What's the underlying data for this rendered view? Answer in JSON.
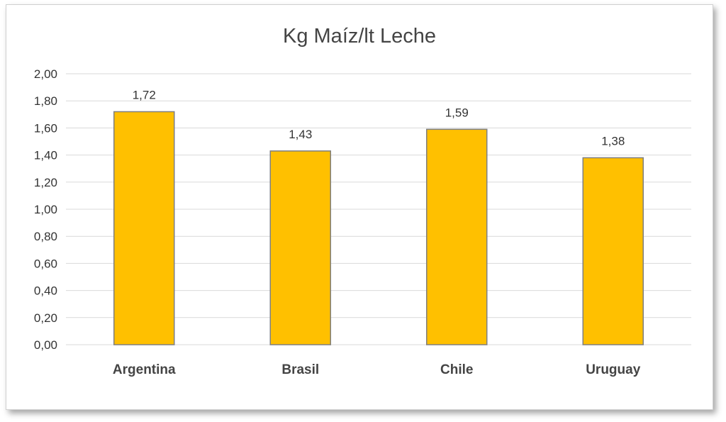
{
  "chart_data": {
    "type": "bar",
    "title": "Kg Maíz/lt Leche",
    "categories": [
      "Argentina",
      "Brasil",
      "Chile",
      "Uruguay"
    ],
    "values": [
      1.72,
      1.43,
      1.59,
      1.38
    ],
    "data_labels": [
      "1,72",
      "1,43",
      "1,59",
      "1,38"
    ],
    "ylim": [
      0,
      2.0
    ],
    "y_ticks": [
      {
        "value": 0.0,
        "label": "0,00"
      },
      {
        "value": 0.2,
        "label": "0,20"
      },
      {
        "value": 0.4,
        "label": "0,40"
      },
      {
        "value": 0.6,
        "label": "0,60"
      },
      {
        "value": 0.8,
        "label": "0,80"
      },
      {
        "value": 1.0,
        "label": "1,00"
      },
      {
        "value": 1.2,
        "label": "1,20"
      },
      {
        "value": 1.4,
        "label": "1,40"
      },
      {
        "value": 1.6,
        "label": "1,60"
      },
      {
        "value": 1.8,
        "label": "1,80"
      },
      {
        "value": 2.0,
        "label": "2,00"
      }
    ],
    "grid": true,
    "legend": "none",
    "colors": {
      "bar_fill": "#FFC000",
      "bar_stroke": "#7F7F7F",
      "grid": "#D9D9D9"
    }
  }
}
